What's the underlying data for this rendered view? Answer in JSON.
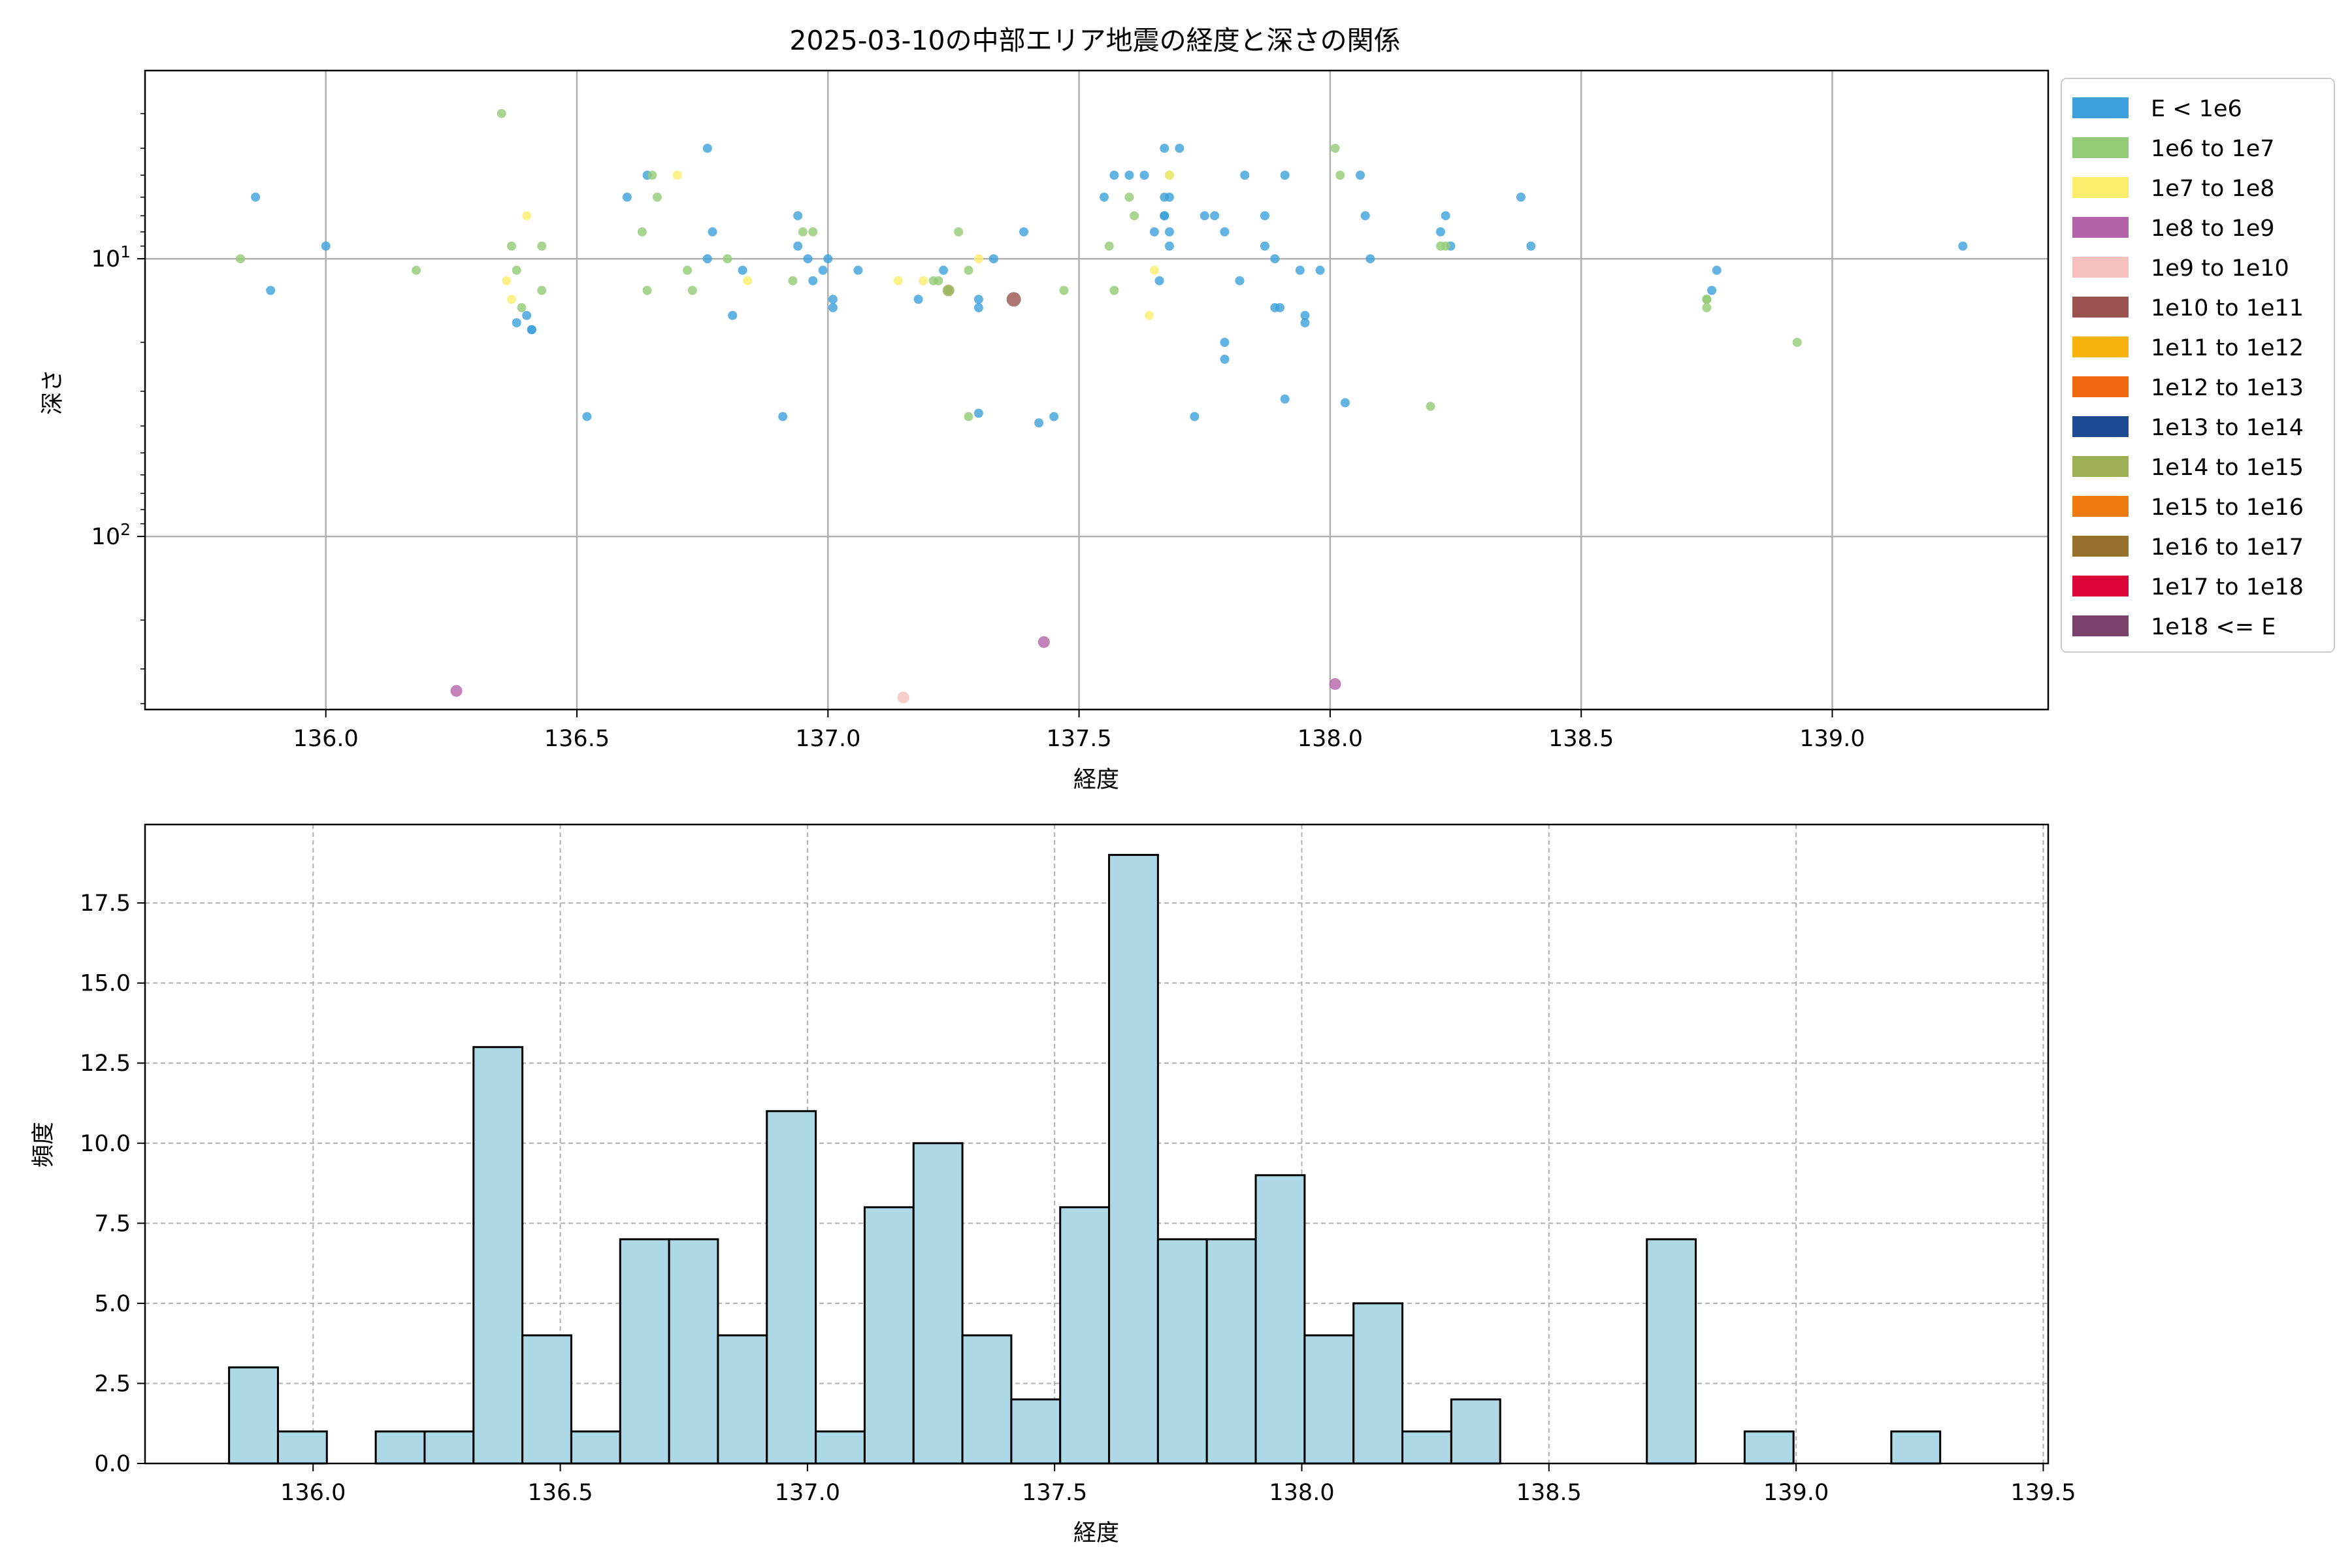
{
  "title": "2025-03-10の中部エリア地震の経度と深さの関係",
  "chart_data": [
    {
      "type": "scatter",
      "xlabel": "経度",
      "ylabel": "深さ",
      "xlim": [
        135.64,
        139.43
      ],
      "ylim": [
        420,
        2.1
      ],
      "yscale": "log",
      "y_inverted": true,
      "grid": true,
      "xticks": [
        136.0,
        136.5,
        137.0,
        137.5,
        138.0,
        138.5,
        139.0
      ],
      "xtick_labels": [
        "136.0",
        "136.5",
        "137.0",
        "137.5",
        "138.0",
        "138.5",
        "139.0"
      ],
      "ytick_labels": [
        {
          "value": 10,
          "label": "10",
          "exp": "1"
        },
        {
          "value": 100,
          "label": "10",
          "exp": "2"
        }
      ],
      "legend_position": "outside-right",
      "legend": [
        {
          "label": "E < 1e6",
          "color": "#3ca0dc"
        },
        {
          "label": "1e6 to 1e7",
          "color": "#92cc76"
        },
        {
          "label": "1e7 to 1e8",
          "color": "#fcee6c"
        },
        {
          "label": "1e8 to 1e9",
          "color": "#b463a8"
        },
        {
          "label": "1e9 to 1e10",
          "color": "#f6c0bc"
        },
        {
          "label": "1e10 to 1e11",
          "color": "#9a534f"
        },
        {
          "label": "1e11 to 1e12",
          "color": "#f7b20d"
        },
        {
          "label": "1e12 to 1e13",
          "color": "#ee6710"
        },
        {
          "label": "1e13 to 1e14",
          "color": "#1c4a93"
        },
        {
          "label": "1e14 to 1e15",
          "color": "#9caf54"
        },
        {
          "label": "1e15 to 1e16",
          "color": "#ef7b10"
        },
        {
          "label": "1e16 to 1e17",
          "color": "#98712d"
        },
        {
          "label": "1e17 to 1e18",
          "color": "#dc0639"
        },
        {
          "label": "1e18 <= E",
          "color": "#7a416c"
        }
      ],
      "series": [
        {
          "name": "E < 1e6",
          "points": [
            [
              135.86,
              6
            ],
            [
              135.89,
              13
            ],
            [
              136.0,
              9
            ],
            [
              136.38,
              17
            ],
            [
              136.4,
              16
            ],
            [
              136.41,
              18
            ],
            [
              136.41,
              18
            ],
            [
              136.52,
              37
            ],
            [
              136.6,
              6
            ],
            [
              136.64,
              5
            ],
            [
              136.76,
              4
            ],
            [
              136.77,
              8
            ],
            [
              136.76,
              10
            ],
            [
              136.81,
              16
            ],
            [
              136.83,
              11
            ],
            [
              136.91,
              37
            ],
            [
              136.94,
              7
            ],
            [
              136.94,
              9
            ],
            [
              136.96,
              10
            ],
            [
              136.97,
              12
            ],
            [
              136.99,
              11
            ],
            [
              137.0,
              10
            ],
            [
              137.01,
              14
            ],
            [
              137.01,
              15
            ],
            [
              137.06,
              11
            ],
            [
              137.18,
              14
            ],
            [
              137.23,
              11
            ],
            [
              137.3,
              14
            ],
            [
              137.3,
              15
            ],
            [
              137.33,
              10
            ],
            [
              137.3,
              36
            ],
            [
              137.39,
              8
            ],
            [
              137.42,
              39
            ],
            [
              137.45,
              37
            ],
            [
              137.55,
              6
            ],
            [
              137.57,
              5
            ],
            [
              137.6,
              5
            ],
            [
              137.63,
              5
            ],
            [
              137.65,
              8
            ],
            [
              137.66,
              12
            ],
            [
              137.67,
              6
            ],
            [
              137.67,
              7
            ],
            [
              137.67,
              7
            ],
            [
              137.68,
              8
            ],
            [
              137.68,
              9
            ],
            [
              137.68,
              6
            ],
            [
              137.67,
              4
            ],
            [
              137.7,
              4
            ],
            [
              137.73,
              37
            ],
            [
              137.75,
              7
            ],
            [
              137.77,
              7
            ],
            [
              137.79,
              8
            ],
            [
              137.79,
              20
            ],
            [
              137.79,
              23
            ],
            [
              137.82,
              12
            ],
            [
              137.83,
              5
            ],
            [
              137.87,
              9
            ],
            [
              137.87,
              7
            ],
            [
              137.89,
              10
            ],
            [
              137.89,
              15
            ],
            [
              137.9,
              15
            ],
            [
              137.91,
              32
            ],
            [
              137.91,
              5
            ],
            [
              137.94,
              11
            ],
            [
              137.95,
              16
            ],
            [
              137.95,
              17
            ],
            [
              137.98,
              11
            ],
            [
              138.03,
              33
            ],
            [
              138.06,
              5
            ],
            [
              138.07,
              7
            ],
            [
              138.08,
              10
            ],
            [
              138.22,
              8
            ],
            [
              138.23,
              7
            ],
            [
              138.24,
              9
            ],
            [
              138.38,
              6
            ],
            [
              138.4,
              9
            ],
            [
              138.76,
              13
            ],
            [
              138.77,
              11
            ],
            [
              139.26,
              9
            ]
          ]
        },
        {
          "name": "1e6 to 1e7",
          "points": [
            [
              135.83,
              10
            ],
            [
              136.18,
              11
            ],
            [
              136.35,
              3
            ],
            [
              136.37,
              9
            ],
            [
              136.38,
              11
            ],
            [
              136.39,
              15
            ],
            [
              136.43,
              13
            ],
            [
              136.43,
              9
            ],
            [
              136.63,
              8
            ],
            [
              136.64,
              13
            ],
            [
              136.65,
              5
            ],
            [
              136.66,
              6
            ],
            [
              136.72,
              11
            ],
            [
              136.73,
              13
            ],
            [
              136.8,
              10
            ],
            [
              136.93,
              12
            ],
            [
              136.95,
              8
            ],
            [
              136.97,
              8
            ],
            [
              137.21,
              12
            ],
            [
              137.22,
              12
            ],
            [
              137.24,
              13
            ],
            [
              137.26,
              8
            ],
            [
              137.28,
              11
            ],
            [
              137.28,
              37
            ],
            [
              137.47,
              13
            ],
            [
              137.56,
              9
            ],
            [
              137.57,
              13
            ],
            [
              137.6,
              6
            ],
            [
              137.61,
              7
            ],
            [
              137.68,
              5
            ],
            [
              138.01,
              4
            ],
            [
              138.02,
              5
            ],
            [
              138.2,
              34
            ],
            [
              138.22,
              9
            ],
            [
              138.23,
              9
            ],
            [
              138.75,
              14
            ],
            [
              138.75,
              15
            ],
            [
              138.75,
              14
            ],
            [
              138.93,
              20
            ]
          ]
        },
        {
          "name": "1e7 to 1e8",
          "points": [
            [
              136.36,
              12
            ],
            [
              136.37,
              14
            ],
            [
              136.4,
              7
            ],
            [
              136.7,
              5
            ],
            [
              136.84,
              12
            ],
            [
              137.14,
              12
            ],
            [
              137.19,
              12
            ],
            [
              137.3,
              10
            ],
            [
              137.64,
              16
            ],
            [
              137.65,
              11
            ],
            [
              137.68,
              5
            ]
          ]
        },
        {
          "name": "1e8 to 1e9",
          "points": [
            [
              136.26,
              360
            ],
            [
              137.43,
              240
            ],
            [
              138.01,
              340
            ]
          ]
        },
        {
          "name": "1e9 to 1e10",
          "points": [
            [
              137.15,
              380
            ]
          ]
        },
        {
          "name": "1e10 to 1e11",
          "points": [
            [
              137.37,
              14
            ]
          ]
        },
        {
          "name": "1e14 to 1e15",
          "points": [
            [
              137.24,
              13
            ]
          ]
        }
      ]
    },
    {
      "type": "bar",
      "xlabel": "経度",
      "ylabel": "頻度",
      "xlim": [
        135.66,
        139.51
      ],
      "ylim": [
        0,
        19.95
      ],
      "grid": true,
      "grid_style": "dashed",
      "bin_start": 135.83,
      "bin_width": 0.0989,
      "values": [
        3,
        1,
        0,
        1,
        1,
        13,
        4,
        1,
        7,
        7,
        4,
        11,
        1,
        8,
        10,
        4,
        2,
        8,
        19,
        7,
        7,
        9,
        4,
        5,
        1,
        2,
        0,
        0,
        0,
        7,
        0,
        1,
        0,
        0,
        1
      ],
      "xticks": [
        136.0,
        136.5,
        137.0,
        137.5,
        138.0,
        138.5,
        139.0,
        139.5
      ],
      "xtick_labels": [
        "136.0",
        "136.5",
        "137.0",
        "137.5",
        "138.0",
        "138.5",
        "139.0",
        "139.5"
      ],
      "yticks": [
        0,
        2.5,
        5,
        7.5,
        10,
        12.5,
        15,
        17.5
      ],
      "ytick_labels": [
        "0.0",
        "2.5",
        "5.0",
        "7.5",
        "10.0",
        "12.5",
        "15.0",
        "17.5"
      ],
      "bar_color": "#add8e6",
      "edge_color": "#000000"
    }
  ]
}
